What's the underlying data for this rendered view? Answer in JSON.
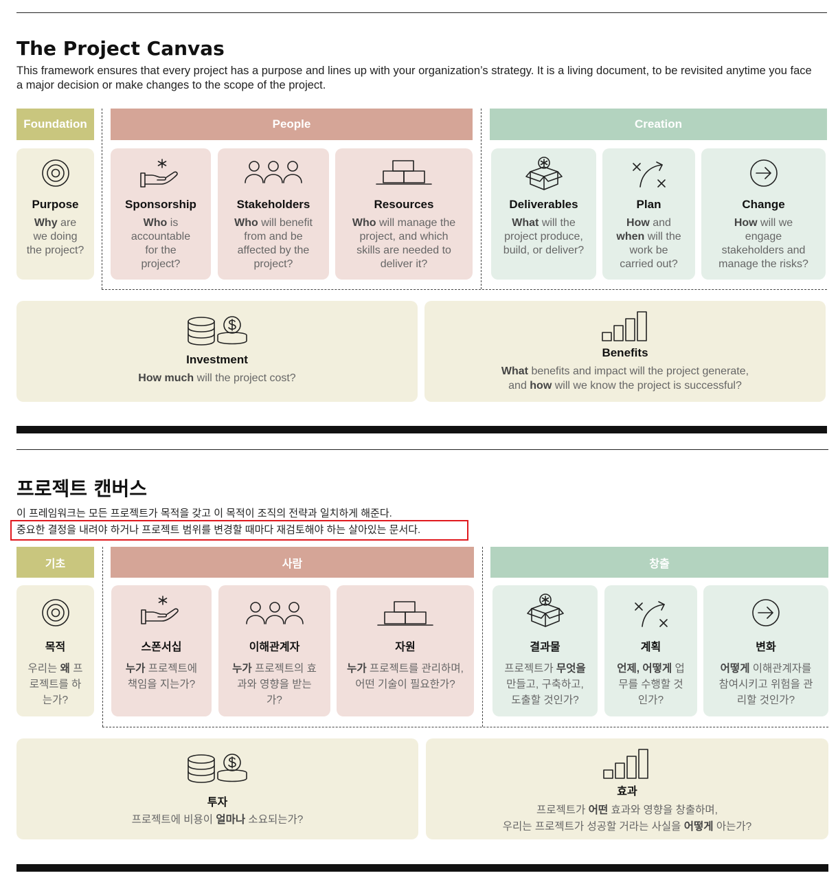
{
  "en": {
    "title": "The Project Canvas",
    "intro": "This framework ensures that every project has a purpose and lines up with your organization’s strategy. It is a living document, to be revisited anytime you face a major decision or make changes to the scope of the project.",
    "headers": {
      "foundation": "Foundation",
      "people": "People",
      "creation": "Creation"
    },
    "cards": {
      "purpose": {
        "name": "Purpose",
        "b1": "Why",
        "t1": " are we doing the project?"
      },
      "sponsorship": {
        "name": "Sponsorship",
        "b1": "Who",
        "t1": " is accountable for the project?"
      },
      "stakeholders": {
        "name": "Stakeholders",
        "b1": "Who",
        "t1": " will benefit from and be affected by the project?"
      },
      "resources": {
        "name": "Resources",
        "b1": "Who",
        "t1": " will manage the project, and which skills are needed to deliver it?"
      },
      "deliverables": {
        "name": "Deliverables",
        "b1": "What",
        "t1": " will the project produce, build, or deliver?"
      },
      "plan": {
        "name": "Plan",
        "b1": "How",
        "t1": " and ",
        "b2": "when",
        "t2": " will the work be carried out?"
      },
      "change": {
        "name": "Change",
        "b1": "How",
        "t1": " will we engage stakeholders and manage the risks?"
      }
    },
    "investment": {
      "name": "Investment",
      "b1": "How much",
      "t1": " will the project cost?"
    },
    "benefits": {
      "name": "Benefits",
      "b1": "What",
      "t1": " benefits and impact will the project generate,",
      "t2": "and ",
      "b2": "how",
      "t3": " will we know the project is successful?"
    }
  },
  "kr": {
    "title": "프로젝트 캔버스",
    "intro1": "이 프레임워크는 모든 프로젝트가 목적을 갖고 이 목적이 조직의 전략과 일치하게 해준다.",
    "intro2": "중요한 결정을 내려야 하거나 프로젝트 범위를 변경할 때마다 재검토해야 하는 살아있는 문서다.",
    "headers": {
      "foundation": "기초",
      "people": "사람",
      "creation": "창출"
    },
    "cards": {
      "purpose": {
        "name": "목적",
        "t0": "우리는 ",
        "b1": "왜",
        "t1": " 프로젝트를 하는가?"
      },
      "sponsorship": {
        "name": "스폰서십",
        "b1": "누가",
        "t1": " 프로젝트에 책임을 지는가?"
      },
      "stakeholders": {
        "name": "이해관계자",
        "b1": "누가",
        "t1": " 프로젝트의 효과와 영향을 받는가?"
      },
      "resources": {
        "name": "자원",
        "b1": "누가",
        "t1": " 프로젝트를 관리하며, 어떤 기술이 필요한가?"
      },
      "deliverables": {
        "name": "결과물",
        "t0": "프로젝트가 ",
        "b1": "무엇을",
        "t1": " 만들고, 구축하고, 도출할 것인가?"
      },
      "plan": {
        "name": "계획",
        "b1": "언제, 어떻게",
        "t1": " 업무를 수행할 것인가?"
      },
      "change": {
        "name": "변화",
        "b1": "어떻게",
        "t1": " 이해관계자를 참여시키고 위험을 관리할 것인가?"
      }
    },
    "investment": {
      "name": "투자",
      "t0": "프로젝트에 비용이 ",
      "b1": "얼마나",
      "t1": " 소요되는가?"
    },
    "benefits": {
      "name": "효과",
      "t0": "프로젝트가 ",
      "b1": "어떤",
      "t1": " 효과와 영향을 창출하며,",
      "t2": "우리는 프로젝트가 성공할 거라는 사실을 ",
      "b2": "어떻게",
      "t3": " 아는가?"
    }
  },
  "icons": [
    "target-icon",
    "hand-star-icon",
    "people-group-icon",
    "blocks-icon",
    "box-star-icon",
    "strategy-arrow-icon",
    "arrow-circle-icon",
    "coins-icon",
    "bar-chart-icon"
  ],
  "colors": {
    "foundation": "#c9c67e",
    "people": "#d5a597",
    "creation": "#b3d3bf",
    "highlight": "#e0191e"
  }
}
